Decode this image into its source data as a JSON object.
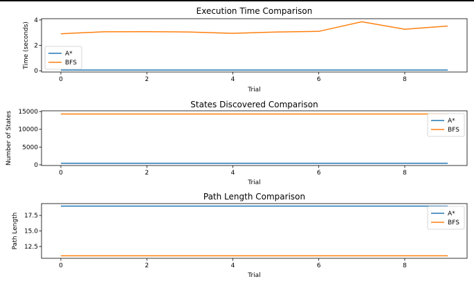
{
  "chart_data": [
    {
      "type": "line",
      "title": "Execution Time Comparison",
      "xlabel": "Trial",
      "ylabel": "Time (seconds)",
      "x": [
        0,
        1,
        2,
        3,
        4,
        5,
        6,
        7,
        8,
        9
      ],
      "xlim": [
        -0.45,
        9.45
      ],
      "ylim": [
        -0.1,
        4.1
      ],
      "xticks": [
        0,
        2,
        4,
        6,
        8
      ],
      "yticks": [
        0,
        2,
        4
      ],
      "legend": "lower-left",
      "series": [
        {
          "name": "A*",
          "color": "#1f77b4",
          "values": [
            0.06,
            0.06,
            0.06,
            0.06,
            0.06,
            0.06,
            0.06,
            0.06,
            0.06,
            0.06
          ]
        },
        {
          "name": "BFS",
          "color": "#ff7f0e",
          "values": [
            2.91,
            3.07,
            3.08,
            3.05,
            2.95,
            3.05,
            3.1,
            3.86,
            3.27,
            3.52
          ]
        }
      ]
    },
    {
      "type": "line",
      "title": "States Discovered Comparison",
      "xlabel": "Trial",
      "ylabel": "Number of States",
      "x": [
        0,
        1,
        2,
        3,
        4,
        5,
        6,
        7,
        8,
        9
      ],
      "xlim": [
        -0.45,
        9.45
      ],
      "ylim": [
        -200,
        15200
      ],
      "xticks": [
        0,
        2,
        4,
        6,
        8
      ],
      "yticks": [
        0,
        5000,
        10000,
        15000
      ],
      "legend": "upper-right",
      "series": [
        {
          "name": "A*",
          "color": "#1f77b4",
          "values": [
            430,
            430,
            430,
            430,
            430,
            430,
            430,
            430,
            430,
            430
          ]
        },
        {
          "name": "BFS",
          "color": "#ff7f0e",
          "values": [
            14300,
            14300,
            14300,
            14300,
            14300,
            14300,
            14300,
            14300,
            14300,
            14300
          ]
        }
      ]
    },
    {
      "type": "line",
      "title": "Path Length Comparison",
      "xlabel": "Trial",
      "ylabel": "Path Length",
      "x": [
        0,
        1,
        2,
        3,
        4,
        5,
        6,
        7,
        8,
        9
      ],
      "xlim": [
        -0.45,
        9.45
      ],
      "ylim": [
        10.6,
        19.4
      ],
      "xticks": [
        0,
        2,
        4,
        6,
        8
      ],
      "yticks": [
        12.5,
        15.0,
        17.5
      ],
      "legend": "upper-right",
      "series": [
        {
          "name": "A*",
          "color": "#1f77b4",
          "values": [
            19,
            19,
            19,
            19,
            19,
            19,
            19,
            19,
            19,
            19
          ]
        },
        {
          "name": "BFS",
          "color": "#ff7f0e",
          "values": [
            11,
            11,
            11,
            11,
            11,
            11,
            11,
            11,
            11,
            11
          ]
        }
      ]
    }
  ]
}
